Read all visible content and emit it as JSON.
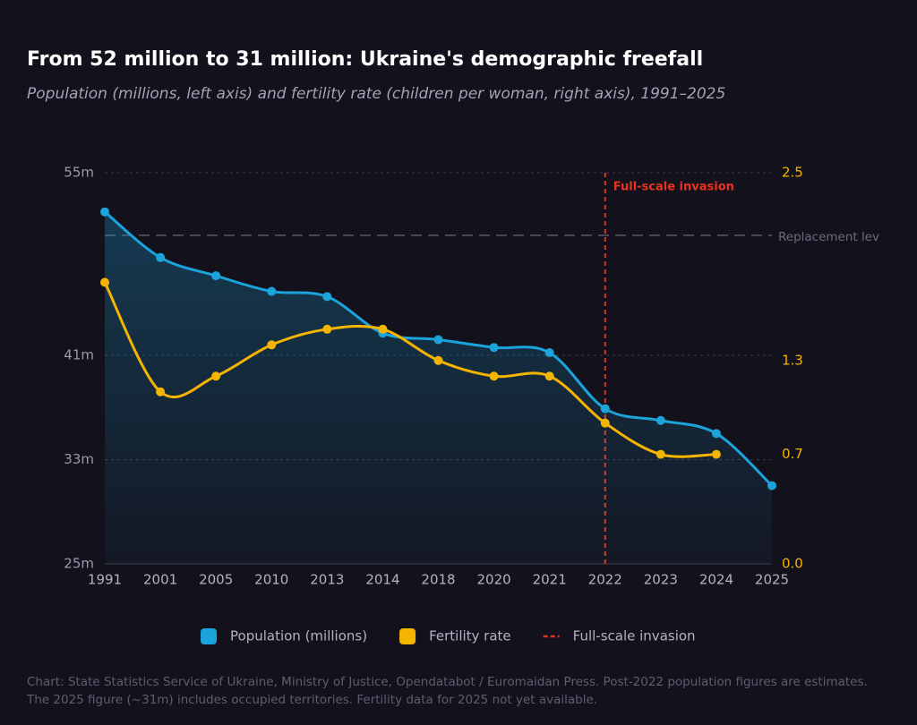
{
  "chart_data": {
    "type": "line",
    "title": "From 52 million to 31 million: Ukraine's demographic freefall",
    "subtitle": "Population (millions, left axis) and fertility rate (children per woman, right axis), 1991–2025",
    "categories": [
      "1991",
      "2001",
      "2005",
      "2010",
      "2013",
      "2014",
      "2018",
      "2020",
      "2021",
      "2022",
      "2023",
      "2024",
      "2025"
    ],
    "series": [
      {
        "name": "Population (millions)",
        "color": "#1ba3dc",
        "values": [
          52,
          48.5,
          47.1,
          45.9,
          45.5,
          42.7,
          42.2,
          41.6,
          41.2,
          36.9,
          36.0,
          35.0,
          31.0
        ]
      },
      {
        "name": "Fertility rate",
        "color": "#f5b400",
        "axis": "y2",
        "values": [
          1.8,
          1.1,
          1.2,
          1.4,
          1.5,
          1.5,
          1.3,
          1.2,
          1.2,
          0.9,
          0.7,
          0.7,
          null
        ]
      }
    ],
    "ylim": [
      25,
      55
    ],
    "yticks": [
      {
        "value": 25,
        "label": "25m"
      },
      {
        "value": 33,
        "label": "33m"
      },
      {
        "value": 41,
        "label": "41m"
      },
      {
        "value": 55,
        "label": "55m"
      }
    ],
    "y2lim": [
      0,
      2.5
    ],
    "y2ticks": [
      {
        "value": 0,
        "label": "0.0"
      },
      0.7,
      1.3,
      2.5
    ],
    "grid": true,
    "replacement_line": {
      "value": 2.1,
      "label": "Replacement lev"
    },
    "invasion_line": {
      "category": 9,
      "label": "Full-scale invasion",
      "color": "#e8321e"
    },
    "footnote": "Chart: State Statistics Service of Ukraine, Ministry of Justice, Opendatabot / Euromaidan Press. Post-2022 population figures are estimates. The 2025 figure (~31m) includes occupied territories. Fertility data for 2025 not yet available."
  }
}
